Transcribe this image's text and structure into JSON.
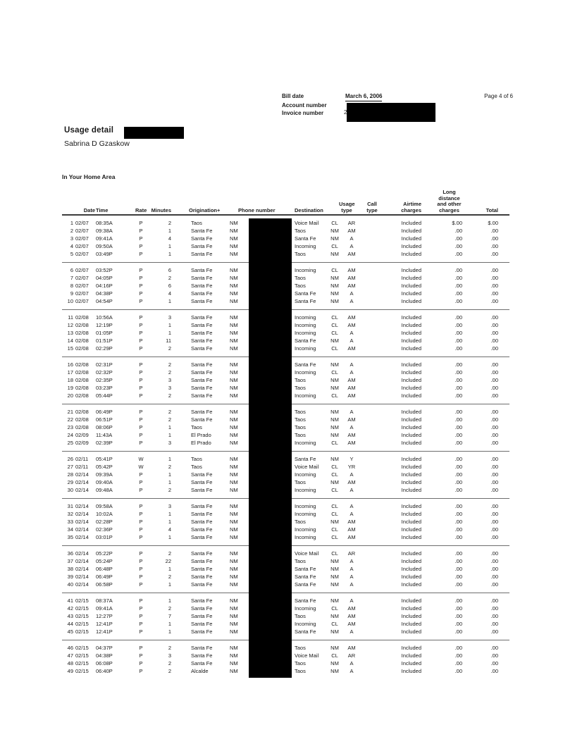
{
  "page_header": {
    "bill_date_label": "Bill date",
    "bill_date_value": "March 6, 2006",
    "account_label": "Account number",
    "invoice_label": "Invoice number",
    "invoice_partial": "2",
    "page_number": "Page 4 of 6"
  },
  "title": {
    "heading": "Usage detail",
    "customer": "Sabrina D Gzaskow"
  },
  "section_heading": "In Your Home Area",
  "table": {
    "column_keys": [
      "row-number",
      "date",
      "time",
      "rate",
      "minutes",
      "origination-city",
      "origination-state",
      "phone-number",
      "destination",
      "usage-type",
      "call-type",
      "airtime-charges",
      "long-distance-charges",
      "total"
    ],
    "headers": [
      "",
      "Date",
      "Time",
      "Rate",
      "Minutes",
      "Origination+",
      "",
      "Phone number",
      "Destination",
      "Usage\ntype",
      "Call\ntype",
      "Airtime\ncharges",
      "Long\ndistance\nand other\ncharges",
      "Total"
    ],
    "groups": [
      [
        [
          "1",
          "02/07",
          "08:35A",
          "P",
          "2",
          "Taos",
          "NM",
          "",
          "Voice Mail",
          "CL",
          "AR",
          "Included",
          "$.00",
          "$.00"
        ],
        [
          "2",
          "02/07",
          "09:38A",
          "P",
          "1",
          "Santa Fe",
          "NM",
          "",
          "Taos",
          "NM",
          "AM",
          "Included",
          ".00",
          ".00"
        ],
        [
          "3",
          "02/07",
          "09:41A",
          "P",
          "4",
          "Santa Fe",
          "NM",
          "",
          "Santa Fe",
          "NM",
          "A",
          "Included",
          ".00",
          ".00"
        ],
        [
          "4",
          "02/07",
          "09:50A",
          "P",
          "1",
          "Santa Fe",
          "NM",
          "",
          "Incoming",
          "CL",
          "A",
          "Included",
          ".00",
          ".00"
        ],
        [
          "5",
          "02/07",
          "03:49P",
          "P",
          "1",
          "Santa Fe",
          "NM",
          "",
          "Taos",
          "NM",
          "AM",
          "Included",
          ".00",
          ".00"
        ]
      ],
      [
        [
          "6",
          "02/07",
          "03:52P",
          "P",
          "6",
          "Santa Fe",
          "NM",
          "",
          "Incoming",
          "CL",
          "AM",
          "Included",
          ".00",
          ".00"
        ],
        [
          "7",
          "02/07",
          "04:05P",
          "P",
          "2",
          "Santa Fe",
          "NM",
          "",
          "Taos",
          "NM",
          "AM",
          "Included",
          ".00",
          ".00"
        ],
        [
          "8",
          "02/07",
          "04:16P",
          "P",
          "6",
          "Santa Fe",
          "NM",
          "",
          "Taos",
          "NM",
          "AM",
          "Included",
          ".00",
          ".00"
        ],
        [
          "9",
          "02/07",
          "04:38P",
          "P",
          "4",
          "Santa Fe",
          "NM",
          "",
          "Santa Fe",
          "NM",
          "A",
          "Included",
          ".00",
          ".00"
        ],
        [
          "10",
          "02/07",
          "04:54P",
          "P",
          "1",
          "Santa Fe",
          "NM",
          "",
          "Santa Fe",
          "NM",
          "A",
          "Included",
          ".00",
          ".00"
        ]
      ],
      [
        [
          "11",
          "02/08",
          "10:56A",
          "P",
          "3",
          "Santa Fe",
          "NM",
          "",
          "Incoming",
          "CL",
          "AM",
          "Included",
          ".00",
          ".00"
        ],
        [
          "12",
          "02/08",
          "12:19P",
          "P",
          "1",
          "Santa Fe",
          "NM",
          "",
          "Incoming",
          "CL",
          "AM",
          "Included",
          ".00",
          ".00"
        ],
        [
          "13",
          "02/08",
          "01:05P",
          "P",
          "1",
          "Santa Fe",
          "NM",
          "",
          "Incoming",
          "CL",
          "A",
          "Included",
          ".00",
          ".00"
        ],
        [
          "14",
          "02/08",
          "01:51P",
          "P",
          "11",
          "Santa Fe",
          "NM",
          "",
          "Santa Fe",
          "NM",
          "A",
          "Included",
          ".00",
          ".00"
        ],
        [
          "15",
          "02/08",
          "02:29P",
          "P",
          "2",
          "Santa Fe",
          "NM",
          "",
          "Incoming",
          "CL",
          "AM",
          "Included",
          ".00",
          ".00"
        ]
      ],
      [
        [
          "16",
          "02/08",
          "02:31P",
          "P",
          "2",
          "Santa Fe",
          "NM",
          "",
          "Santa Fe",
          "NM",
          "A",
          "Included",
          ".00",
          ".00"
        ],
        [
          "17",
          "02/08",
          "02:32P",
          "P",
          "2",
          "Santa Fe",
          "NM",
          "",
          "Incoming",
          "CL",
          "A",
          "Included",
          ".00",
          ".00"
        ],
        [
          "18",
          "02/08",
          "02:35P",
          "P",
          "3",
          "Santa Fe",
          "NM",
          "",
          "Taos",
          "NM",
          "AM",
          "Included",
          ".00",
          ".00"
        ],
        [
          "19",
          "02/08",
          "03:23P",
          "P",
          "3",
          "Santa Fe",
          "NM",
          "",
          "Taos",
          "NM",
          "AM",
          "Included",
          ".00",
          ".00"
        ],
        [
          "20",
          "02/08",
          "05:44P",
          "P",
          "2",
          "Santa Fe",
          "NM",
          "",
          "Incoming",
          "CL",
          "AM",
          "Included",
          ".00",
          ".00"
        ]
      ],
      [
        [
          "21",
          "02/08",
          "06:49P",
          "P",
          "2",
          "Santa Fe",
          "NM",
          "",
          "Taos",
          "NM",
          "A",
          "Included",
          ".00",
          ".00"
        ],
        [
          "22",
          "02/08",
          "06:51P",
          "P",
          "2",
          "Santa Fe",
          "NM",
          "",
          "Taos",
          "NM",
          "AM",
          "Included",
          ".00",
          ".00"
        ],
        [
          "23",
          "02/08",
          "08:06P",
          "P",
          "1",
          "Taos",
          "NM",
          "",
          "Taos",
          "NM",
          "A",
          "Included",
          ".00",
          ".00"
        ],
        [
          "24",
          "02/09",
          "11:43A",
          "P",
          "1",
          "El Prado",
          "NM",
          "",
          "Taos",
          "NM",
          "AM",
          "Included",
          ".00",
          ".00"
        ],
        [
          "25",
          "02/09",
          "02:39P",
          "P",
          "3",
          "El Prado",
          "NM",
          "",
          "Incoming",
          "CL",
          "AM",
          "Included",
          ".00",
          ".00"
        ]
      ],
      [
        [
          "26",
          "02/11",
          "05:41P",
          "W",
          "1",
          "Taos",
          "NM",
          "",
          "Santa Fe",
          "NM",
          "Y",
          "Included",
          ".00",
          ".00"
        ],
        [
          "27",
          "02/11",
          "05:42P",
          "W",
          "2",
          "Taos",
          "NM",
          "",
          "Voice Mail",
          "CL",
          "YR",
          "Included",
          ".00",
          ".00"
        ],
        [
          "28",
          "02/14",
          "09:39A",
          "P",
          "1",
          "Santa Fe",
          "NM",
          "",
          "Incoming",
          "CL",
          "A",
          "Included",
          ".00",
          ".00"
        ],
        [
          "29",
          "02/14",
          "09:40A",
          "P",
          "1",
          "Santa Fe",
          "NM",
          "",
          "Taos",
          "NM",
          "AM",
          "Included",
          ".00",
          ".00"
        ],
        [
          "30",
          "02/14",
          "09:48A",
          "P",
          "2",
          "Santa Fe",
          "NM",
          "",
          "Incoming",
          "CL",
          "A",
          "Included",
          ".00",
          ".00"
        ]
      ],
      [
        [
          "31",
          "02/14",
          "09:58A",
          "P",
          "3",
          "Santa Fe",
          "NM",
          "",
          "Incoming",
          "CL",
          "A",
          "Included",
          ".00",
          ".00"
        ],
        [
          "32",
          "02/14",
          "10:02A",
          "P",
          "1",
          "Santa Fe",
          "NM",
          "",
          "Incoming",
          "CL",
          "A",
          "Included",
          ".00",
          ".00"
        ],
        [
          "33",
          "02/14",
          "02:28P",
          "P",
          "1",
          "Santa Fe",
          "NM",
          "",
          "Taos",
          "NM",
          "AM",
          "Included",
          ".00",
          ".00"
        ],
        [
          "34",
          "02/14",
          "02:36P",
          "P",
          "4",
          "Santa Fe",
          "NM",
          "",
          "Incoming",
          "CL",
          "AM",
          "Included",
          ".00",
          ".00"
        ],
        [
          "35",
          "02/14",
          "03:01P",
          "P",
          "1",
          "Santa Fe",
          "NM",
          "",
          "Incoming",
          "CL",
          "AM",
          "Included",
          ".00",
          ".00"
        ]
      ],
      [
        [
          "36",
          "02/14",
          "05:22P",
          "P",
          "2",
          "Santa Fe",
          "NM",
          "",
          "Voice Mail",
          "CL",
          "AR",
          "Included",
          ".00",
          ".00"
        ],
        [
          "37",
          "02/14",
          "05:24P",
          "P",
          "22",
          "Santa Fe",
          "NM",
          "",
          "Taos",
          "NM",
          "A",
          "Included",
          ".00",
          ".00"
        ],
        [
          "38",
          "02/14",
          "06:48P",
          "P",
          "1",
          "Santa Fe",
          "NM",
          "",
          "Santa Fe",
          "NM",
          "A",
          "Included",
          ".00",
          ".00"
        ],
        [
          "39",
          "02/14",
          "06:49P",
          "P",
          "2",
          "Santa Fe",
          "NM",
          "",
          "Santa Fe",
          "NM",
          "A",
          "Included",
          ".00",
          ".00"
        ],
        [
          "40",
          "02/14",
          "06:58P",
          "P",
          "1",
          "Santa Fe",
          "NM",
          "",
          "Santa Fe",
          "NM",
          "A",
          "Included",
          ".00",
          ".00"
        ]
      ],
      [
        [
          "41",
          "02/15",
          "08:37A",
          "P",
          "1",
          "Santa Fe",
          "NM",
          "",
          "Santa Fe",
          "NM",
          "A",
          "Included",
          ".00",
          ".00"
        ],
        [
          "42",
          "02/15",
          "09:41A",
          "P",
          "2",
          "Santa Fe",
          "NM",
          "",
          "Incoming",
          "CL",
          "AM",
          "Included",
          ".00",
          ".00"
        ],
        [
          "43",
          "02/15",
          "12:27P",
          "P",
          "7",
          "Santa Fe",
          "NM",
          "",
          "Taos",
          "NM",
          "AM",
          "Included",
          ".00",
          ".00"
        ],
        [
          "44",
          "02/15",
          "12:41P",
          "P",
          "1",
          "Santa Fe",
          "NM",
          "",
          "Incoming",
          "CL",
          "AM",
          "Included",
          ".00",
          ".00"
        ],
        [
          "45",
          "02/15",
          "12:41P",
          "P",
          "1",
          "Santa Fe",
          "NM",
          "",
          "Santa Fe",
          "NM",
          "A",
          "Included",
          ".00",
          ".00"
        ]
      ],
      [
        [
          "46",
          "02/15",
          "04:37P",
          "P",
          "2",
          "Santa Fe",
          "NM",
          "",
          "Taos",
          "NM",
          "AM",
          "Included",
          ".00",
          ".00"
        ],
        [
          "47",
          "02/15",
          "04:38P",
          "P",
          "3",
          "Santa Fe",
          "NM",
          "",
          "Voice Mail",
          "CL",
          "AR",
          "Included",
          ".00",
          ".00"
        ],
        [
          "48",
          "02/15",
          "06:08P",
          "P",
          "2",
          "Santa Fe",
          "NM",
          "",
          "Taos",
          "NM",
          "A",
          "Included",
          ".00",
          ".00"
        ],
        [
          "49",
          "02/15",
          "06:40P",
          "P",
          "2",
          "Alcalde",
          "NM",
          "",
          "Taos",
          "NM",
          "A",
          "Included",
          ".00",
          ".00"
        ]
      ]
    ]
  }
}
